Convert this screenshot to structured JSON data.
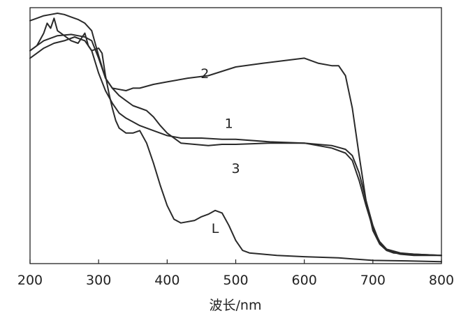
{
  "chart_data": {
    "type": "line",
    "xlabel": "波长/nm",
    "ylabel": "",
    "xlim": [
      200,
      800
    ],
    "ylim": [
      0,
      1
    ],
    "x_ticks": [
      "200",
      "300",
      "400",
      "500",
      "600",
      "700",
      "800"
    ],
    "y_ticks_shown": false,
    "grid": false,
    "series": [
      {
        "name": "1",
        "x": [
          200,
          210,
          220,
          235,
          250,
          265,
          280,
          290,
          300,
          310,
          320,
          330,
          340,
          350,
          360,
          380,
          400,
          420,
          450,
          480,
          500,
          550,
          600,
          640,
          660,
          670,
          680,
          690,
          700,
          710,
          720,
          740,
          760,
          800
        ],
        "y": [
          0.82,
          0.84,
          0.86,
          0.88,
          0.89,
          0.905,
          0.89,
          0.85,
          0.76,
          0.69,
          0.64,
          0.6,
          0.58,
          0.565,
          0.55,
          0.53,
          0.51,
          0.5,
          0.5,
          0.495,
          0.495,
          0.485,
          0.48,
          0.47,
          0.455,
          0.43,
          0.36,
          0.25,
          0.15,
          0.08,
          0.05,
          0.035,
          0.03,
          0.03
        ]
      },
      {
        "name": "2",
        "x": [
          200,
          210,
          220,
          230,
          240,
          250,
          260,
          270,
          280,
          290,
          300,
          310,
          320,
          330,
          340,
          350,
          360,
          380,
          400,
          430,
          460,
          500,
          540,
          570,
          600,
          620,
          640,
          650,
          660,
          670,
          680,
          690,
          700,
          710,
          720,
          730,
          760,
          800
        ],
        "y": [
          0.97,
          0.98,
          0.99,
          0.995,
          1.0,
          0.995,
          0.985,
          0.975,
          0.96,
          0.93,
          0.83,
          0.74,
          0.7,
          0.695,
          0.69,
          0.7,
          0.7,
          0.715,
          0.725,
          0.74,
          0.75,
          0.785,
          0.8,
          0.81,
          0.82,
          0.8,
          0.79,
          0.79,
          0.75,
          0.62,
          0.43,
          0.25,
          0.13,
          0.075,
          0.05,
          0.04,
          0.035,
          0.03
        ]
      },
      {
        "name": "3",
        "x": [
          200,
          210,
          220,
          240,
          260,
          270,
          280,
          290,
          300,
          310,
          320,
          330,
          340,
          350,
          360,
          370,
          380,
          390,
          400,
          420,
          440,
          460,
          480,
          500,
          550,
          600,
          640,
          660,
          670,
          680,
          690,
          700,
          710,
          720,
          740,
          760,
          800
        ],
        "y": [
          0.85,
          0.87,
          0.89,
          0.91,
          0.915,
          0.91,
          0.905,
          0.89,
          0.82,
          0.74,
          0.7,
          0.67,
          0.65,
          0.63,
          0.62,
          0.61,
          0.585,
          0.55,
          0.52,
          0.48,
          0.475,
          0.47,
          0.475,
          0.475,
          0.48,
          0.48,
          0.46,
          0.44,
          0.41,
          0.33,
          0.23,
          0.14,
          0.085,
          0.055,
          0.04,
          0.035,
          0.03
        ]
      },
      {
        "name": "L",
        "x": [
          200,
          210,
          220,
          225,
          230,
          235,
          240,
          245,
          250,
          260,
          270,
          280,
          285,
          290,
          300,
          305,
          310,
          315,
          320,
          325,
          330,
          340,
          350,
          360,
          370,
          380,
          390,
          400,
          410,
          420,
          440,
          450,
          460,
          470,
          480,
          490,
          500,
          510,
          520,
          540,
          560,
          600,
          650,
          700,
          750,
          800
        ],
        "y": [
          0.85,
          0.87,
          0.92,
          0.96,
          0.94,
          0.98,
          0.93,
          0.92,
          0.91,
          0.89,
          0.88,
          0.92,
          0.87,
          0.85,
          0.86,
          0.84,
          0.75,
          0.68,
          0.62,
          0.57,
          0.54,
          0.52,
          0.52,
          0.53,
          0.48,
          0.4,
          0.31,
          0.23,
          0.175,
          0.16,
          0.17,
          0.185,
          0.195,
          0.21,
          0.2,
          0.15,
          0.09,
          0.05,
          0.04,
          0.035,
          0.03,
          0.025,
          0.02,
          0.01,
          0.008,
          0.005
        ]
      }
    ],
    "series_label_positions": {
      "1": [
        490,
        0.56
      ],
      "2": [
        455,
        0.76
      ],
      "3": [
        500,
        0.38
      ],
      "L": [
        470,
        0.14
      ]
    }
  }
}
